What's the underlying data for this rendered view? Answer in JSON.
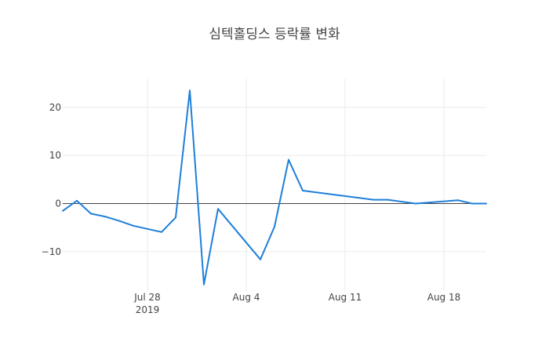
{
  "chart_data": {
    "type": "line",
    "title": "심텍홀딩스 등락률 변화",
    "xlabel": "",
    "ylabel": "",
    "x_tick_labels": [
      {
        "date": "2019-07-28",
        "label": "Jul 28",
        "sublabel": "2019"
      },
      {
        "date": "2019-08-04",
        "label": "Aug 4",
        "sublabel": ""
      },
      {
        "date": "2019-08-11",
        "label": "Aug 11",
        "sublabel": ""
      },
      {
        "date": "2019-08-18",
        "label": "Aug 18",
        "sublabel": ""
      }
    ],
    "y_ticks": [
      20,
      10,
      0,
      -10
    ],
    "y_tick_labels": [
      "20",
      "10",
      "0",
      "−10"
    ],
    "xlim": [
      "2019-07-22",
      "2019-08-21"
    ],
    "ylim": [
      -18,
      26
    ],
    "grid": true,
    "zero_line": true,
    "series_color": "#1f7fd8",
    "series": [
      {
        "x": [
          "2019-07-22",
          "2019-07-23",
          "2019-07-24",
          "2019-07-25",
          "2019-07-26",
          "2019-07-27",
          "2019-07-29",
          "2019-07-30",
          "2019-07-31",
          "2019-08-01",
          "2019-08-02",
          "2019-08-05",
          "2019-08-06",
          "2019-08-07",
          "2019-08-08",
          "2019-08-13",
          "2019-08-14",
          "2019-08-16",
          "2019-08-19",
          "2019-08-20",
          "2019-08-21"
        ],
        "values": [
          -1.5,
          0.6,
          -2.1,
          -2.7,
          -3.6,
          -4.6,
          -5.9,
          -2.9,
          23.5,
          -16.8,
          -1.1,
          -11.6,
          -4.8,
          9.1,
          2.7,
          0.8,
          0.8,
          0.0,
          0.7,
          0.0,
          0.0
        ]
      }
    ]
  }
}
